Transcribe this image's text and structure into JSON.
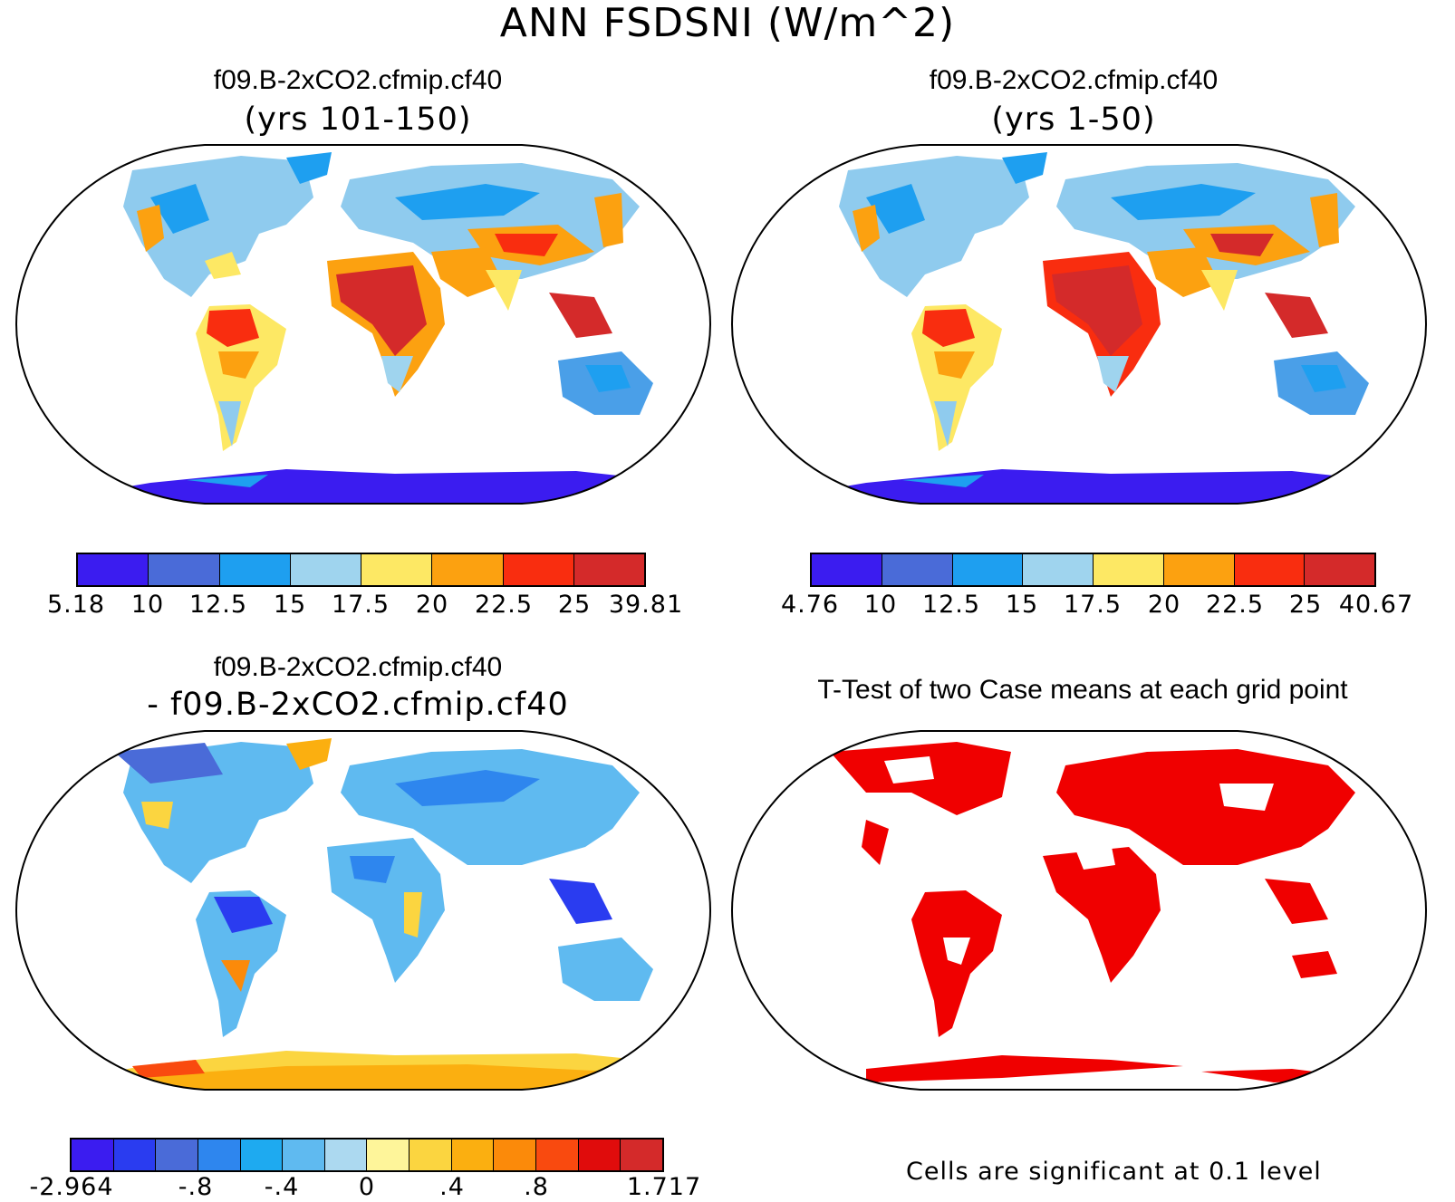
{
  "main_title": "ANN FSDSNI (W/m^2)",
  "panels": [
    {
      "id": "top-left",
      "title": "f09.B-2xCO2.cfmip.cf40",
      "subtitle": "(yrs 101-150)",
      "colorbar": {
        "colors": [
          "#3b1cf0",
          "#4a6bd8",
          "#1e9ff0",
          "#9fd4ee",
          "#fde864",
          "#fca110",
          "#f92d0f",
          "#d42a2a"
        ],
        "labels": [
          "5.18",
          "10",
          "12.5",
          "15",
          "17.5",
          "20",
          "22.5",
          "25",
          "39.81"
        ]
      }
    },
    {
      "id": "top-right",
      "title": "f09.B-2xCO2.cfmip.cf40",
      "subtitle": "(yrs 1-50)",
      "colorbar": {
        "colors": [
          "#3b1cf0",
          "#4a6bd8",
          "#1e9ff0",
          "#9fd4ee",
          "#fde864",
          "#fca110",
          "#f92d0f",
          "#d42a2a"
        ],
        "labels": [
          "4.76",
          "10",
          "12.5",
          "15",
          "17.5",
          "20",
          "22.5",
          "25",
          "40.67"
        ]
      }
    },
    {
      "id": "bottom-left",
      "title": "f09.B-2xCO2.cfmip.cf40",
      "subtitle": "- f09.B-2xCO2.cfmip.cf40",
      "colorbar": {
        "colors": [
          "#3b1cf0",
          "#2a3cf0",
          "#4a6bd8",
          "#2e86ee",
          "#1eaaf0",
          "#5fbaf0",
          "#acd9f0",
          "#fef59a",
          "#fbd540",
          "#fbaf10",
          "#fb8a0a",
          "#f94a0f",
          "#e00c0c",
          "#d42a2a"
        ],
        "labels": [
          "-2.964",
          "-.8",
          "-.4",
          "0",
          ".4",
          ".8",
          "1.717"
        ]
      }
    },
    {
      "id": "bottom-right",
      "title": "T-Test of two Case means at each grid point",
      "note": "Cells are significant at 0.1 level",
      "sig_color": "#f00000"
    }
  ]
}
